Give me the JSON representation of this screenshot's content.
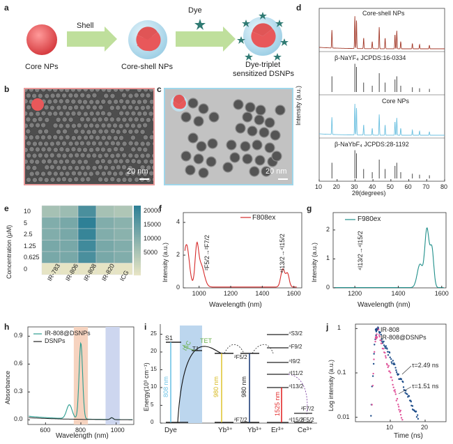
{
  "panels": {
    "a": {
      "letter": "a",
      "core_label": "Core NPs",
      "shell_arrow": "Shell",
      "coreshell_label": "Core-shell NPs",
      "dye_arrow": "Dye",
      "dsnp_label_1": "Dye-triplet",
      "dsnp_label_2": "sensitized DSNPs"
    },
    "b": {
      "letter": "b",
      "scale": "20 nm"
    },
    "c": {
      "letter": "c",
      "scale": "20 nm"
    },
    "d": {
      "letter": "d",
      "trace1": "Core-shell NPs",
      "ref1": "β-NaYF₄ JCPDS:16-0334",
      "trace2": "Core NPs",
      "ref2": "β-NaYbF₄ JCPDS:28-1192",
      "ylabel": "Intensity (a.u.)",
      "xlabel": "2θ(degrees)",
      "xticks": [
        "10",
        "20",
        "30",
        "40",
        "50",
        "60",
        "70",
        "80"
      ]
    },
    "e": {
      "letter": "e",
      "ylabel": "Concentration (μM)",
      "rows": [
        "10",
        "5",
        "2.5",
        "1.25",
        "0.625",
        "0"
      ],
      "cols": [
        "IR-783",
        "IR-806",
        "IR-808",
        "IR-820",
        "ICG"
      ],
      "cbar_ticks": [
        "20000",
        "15000",
        "10000",
        "5000"
      ]
    },
    "f": {
      "letter": "f",
      "legend": "F808ex",
      "ylabel": "Intensity (a.u.)",
      "xlabel": "Wavelength (nm)",
      "yticks": [
        "0",
        "2",
        "4"
      ],
      "xticks": [
        "1000",
        "1200",
        "1400",
        "1600"
      ],
      "ann1": "²F5/2→²F7/2",
      "ann2": "⁴I13/2→⁴I15/2"
    },
    "g": {
      "letter": "g",
      "legend": "F980ex",
      "ylabel": "Intensity (a.u.)",
      "xlabel": "Wavelength (nm)",
      "yticks": [
        "0",
        "1",
        "2"
      ],
      "xticks": [
        "1200",
        "1400",
        "1600"
      ],
      "ann1": "⁴I13/2→⁴I15/2"
    },
    "h": {
      "letter": "h",
      "legend1": "IR-808@DSNPs",
      "legend2": "DSNPs",
      "ylabel": "Absorbance",
      "xlabel": "Wavelength (nm)",
      "yticks": [
        "0.0",
        "0.3",
        "0.6",
        "0.9"
      ],
      "xticks": [
        "600",
        "800",
        "1000"
      ]
    },
    "i": {
      "letter": "i",
      "ylabel": "Energy(10³ cm⁻¹)",
      "yticks": [
        "0",
        "5",
        "10",
        "15",
        "20",
        "25"
      ],
      "s1": "S1",
      "t1": "T1",
      "isc": "ISC",
      "tet": "TET",
      "nm808": "808 nm",
      "nm980a": "980 nm",
      "nm980b": "980 nm",
      "nm1525": "1525 nm",
      "dye": "Dye",
      "yb1": "Yb³⁺",
      "yb2": "Yb³⁺",
      "er": "Er³⁺",
      "ce": "Ce³⁺",
      "yb_up": "²F5/2",
      "yb_low": "²F7/2",
      "er_levels": [
        "⁴S3/2",
        "⁴F9/2",
        "⁴I9/2",
        "⁴I11/2",
        "⁴I13/2",
        "⁴I15/2"
      ],
      "ce_up": "²F7/2",
      "ce_low": "²F5/2"
    },
    "j": {
      "letter": "j",
      "legend1": "IR-808",
      "legend2": "IR-808@DSNPs",
      "ylabel": "Log intensity (a.u.)",
      "xlabel": "Time (ns)",
      "yticks": [
        "0.01",
        "0.1",
        "1"
      ],
      "xticks": [
        "10",
        "20"
      ],
      "tau1": "τ=2.49 ns",
      "tau2": "τ=1.51 ns"
    }
  },
  "colors": {
    "core": "#e8585a",
    "shell": "#bfe0ee",
    "arrow": "#bfdf9c",
    "dye": "#2f7a73",
    "xrd_red": "#a33a2a",
    "xrd_blue": "#6cc0e0",
    "teal": "#1f8f8a",
    "pink": "#e0569b",
    "navy": "#1f4e8a"
  }
}
